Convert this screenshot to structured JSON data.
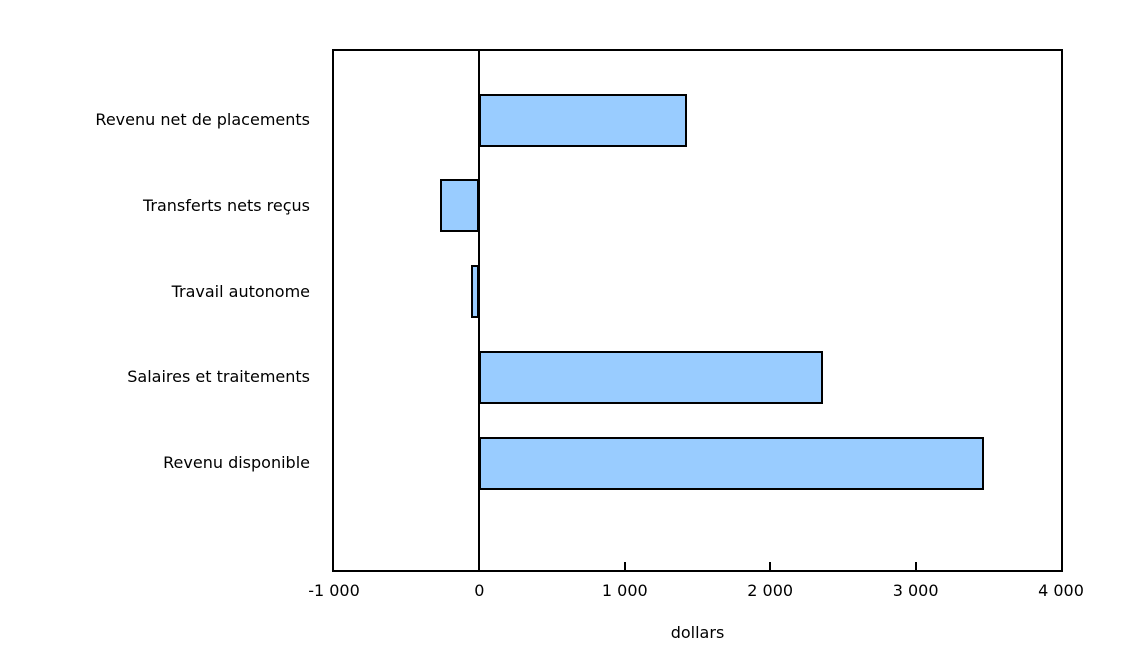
{
  "chart_data": {
    "type": "bar",
    "orientation": "horizontal",
    "categories": [
      "Revenu net de placements",
      "Transferts nets reçus",
      "Travail autonome",
      "Salaires et traitements",
      "Revenu disponible"
    ],
    "values": [
      1430,
      -270,
      -60,
      2360,
      3470
    ],
    "title": "",
    "xlabel": "dollars",
    "ylabel": "",
    "xlim": [
      -1000,
      4000
    ],
    "xticks": [
      -1000,
      0,
      1000,
      2000,
      3000,
      4000
    ],
    "xtick_labels": [
      "-1 000",
      "0",
      "1 000",
      "2 000",
      "3 000",
      "4 000"
    ],
    "inner_tick_values": [
      1000,
      2000,
      3000
    ],
    "zero_line": true,
    "grid": false,
    "legend": false,
    "bar_fill_color": "#99CCFF",
    "bar_border_color": "#000000",
    "axis_color": "#000000",
    "text_color": "#000000"
  }
}
